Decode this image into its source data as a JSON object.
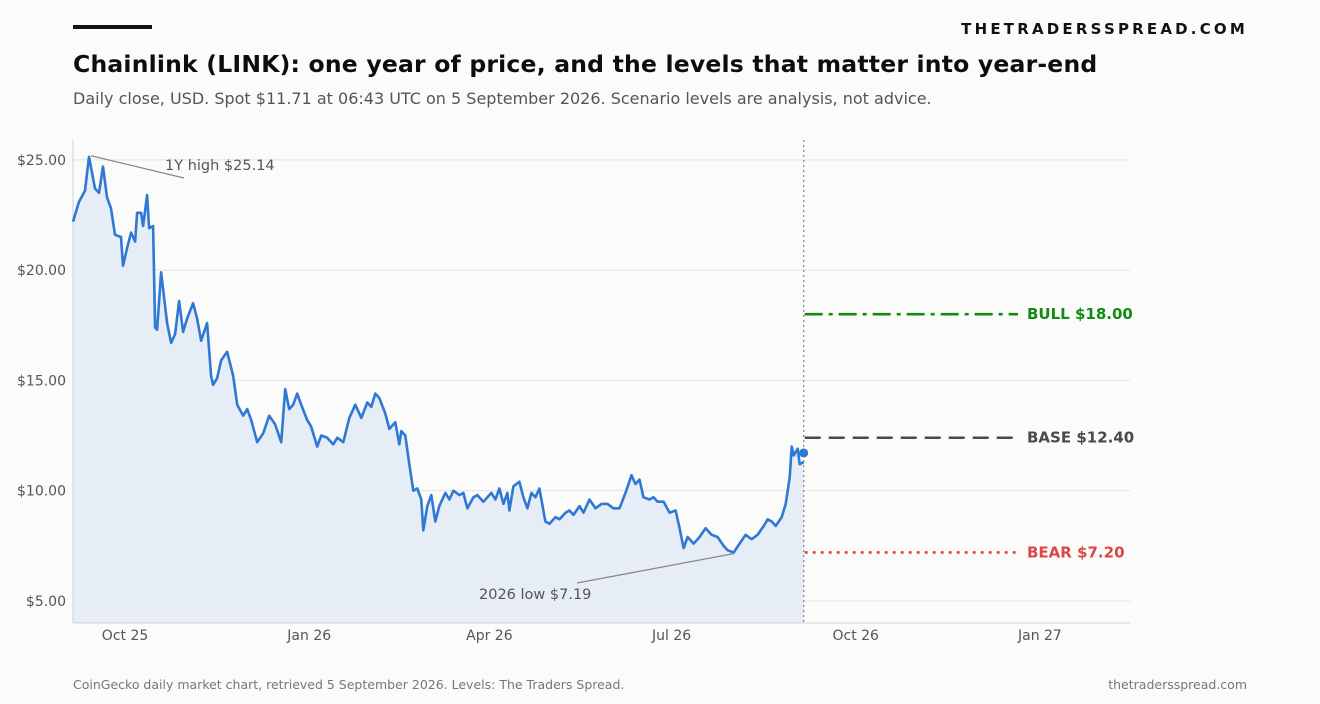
{
  "header": {
    "brand": "THETRADERSSPREAD.COM",
    "title": "Chainlink (LINK): one year of price, and the levels that matter into year-end",
    "subtitle": "Daily close, USD. Spot $11.71 at 06:43 UTC on 5 September 2026. Scenario levels are analysis, not advice."
  },
  "footer": {
    "source": "CoinGecko daily market chart, retrieved 5 September 2026. Levels: The Traders Spread.",
    "site": "thetradersspread.com"
  },
  "colors": {
    "line": "#2f78d3",
    "area": "#e6edf7",
    "bull": "#138a13",
    "base": "#4a4a4a",
    "bear": "#d94747",
    "grid": "#e3e3e3",
    "now_line": "#8a8a8a"
  },
  "chart_data": {
    "type": "line",
    "title": "Chainlink (LINK): one year of price, and the levels that matter into year-end",
    "ylabel": "",
    "xlabel": "",
    "ylim": [
      4.0,
      25.9
    ],
    "xlim": [
      "2025-09-05",
      "2027-02-15"
    ],
    "yticks": [
      5,
      10,
      15,
      20,
      25
    ],
    "ytick_labels": [
      "$5.00",
      "$10.00",
      "$15.00",
      "$20.00",
      "$25.00"
    ],
    "xticks": [
      "2025-10-01",
      "2026-01-01",
      "2026-04-01",
      "2026-07-01",
      "2026-10-01",
      "2027-01-01"
    ],
    "xtick_labels": [
      "Oct 25",
      "Jan 26",
      "Apr 26",
      "Jul 26",
      "Oct 26",
      "Jan 27"
    ],
    "grid": "horizontal",
    "spot": {
      "date": "2026-09-05",
      "value": 11.71
    },
    "series": [
      {
        "points": [
          [
            "2025-09-05",
            22.2
          ],
          [
            "2025-09-08",
            23.1
          ],
          [
            "2025-09-11",
            23.6
          ],
          [
            "2025-09-13",
            25.14
          ],
          [
            "2025-09-16",
            23.7
          ],
          [
            "2025-09-18",
            23.5
          ],
          [
            "2025-09-20",
            24.7
          ],
          [
            "2025-09-22",
            23.3
          ],
          [
            "2025-09-24",
            22.8
          ],
          [
            "2025-09-26",
            21.6
          ],
          [
            "2025-09-29",
            21.5
          ],
          [
            "2025-09-30",
            20.2
          ],
          [
            "2025-10-02",
            21.0
          ],
          [
            "2025-10-04",
            21.7
          ],
          [
            "2025-10-06",
            21.3
          ],
          [
            "2025-10-07",
            22.6
          ],
          [
            "2025-10-09",
            22.6
          ],
          [
            "2025-10-10",
            22.0
          ],
          [
            "2025-10-12",
            23.4
          ],
          [
            "2025-10-13",
            21.9
          ],
          [
            "2025-10-15",
            22.0
          ],
          [
            "2025-10-16",
            17.4
          ],
          [
            "2025-10-17",
            17.3
          ],
          [
            "2025-10-19",
            19.9
          ],
          [
            "2025-10-22",
            17.6
          ],
          [
            "2025-10-24",
            16.7
          ],
          [
            "2025-10-26",
            17.1
          ],
          [
            "2025-10-28",
            18.6
          ],
          [
            "2025-10-30",
            17.2
          ],
          [
            "2025-11-01",
            17.8
          ],
          [
            "2025-11-04",
            18.5
          ],
          [
            "2025-11-06",
            17.8
          ],
          [
            "2025-11-08",
            16.8
          ],
          [
            "2025-11-11",
            17.6
          ],
          [
            "2025-11-13",
            15.2
          ],
          [
            "2025-11-14",
            14.8
          ],
          [
            "2025-11-16",
            15.1
          ],
          [
            "2025-11-18",
            15.9
          ],
          [
            "2025-11-21",
            16.3
          ],
          [
            "2025-11-24",
            15.2
          ],
          [
            "2025-11-26",
            13.9
          ],
          [
            "2025-11-29",
            13.4
          ],
          [
            "2025-12-01",
            13.7
          ],
          [
            "2025-12-03",
            13.2
          ],
          [
            "2025-12-06",
            12.2
          ],
          [
            "2025-12-09",
            12.6
          ],
          [
            "2025-12-12",
            13.4
          ],
          [
            "2025-12-15",
            13.0
          ],
          [
            "2025-12-18",
            12.2
          ],
          [
            "2025-12-20",
            14.6
          ],
          [
            "2025-12-22",
            13.7
          ],
          [
            "2025-12-24",
            13.9
          ],
          [
            "2025-12-26",
            14.4
          ],
          [
            "2025-12-28",
            13.9
          ],
          [
            "2025-12-31",
            13.2
          ],
          [
            "2026-01-02",
            12.9
          ],
          [
            "2026-01-05",
            12.0
          ],
          [
            "2026-01-07",
            12.5
          ],
          [
            "2026-01-10",
            12.4
          ],
          [
            "2026-01-13",
            12.1
          ],
          [
            "2026-01-15",
            12.4
          ],
          [
            "2026-01-18",
            12.2
          ],
          [
            "2026-01-21",
            13.3
          ],
          [
            "2026-01-24",
            13.9
          ],
          [
            "2026-01-27",
            13.3
          ],
          [
            "2026-01-30",
            14.0
          ],
          [
            "2026-02-01",
            13.8
          ],
          [
            "2026-02-03",
            14.4
          ],
          [
            "2026-02-05",
            14.2
          ],
          [
            "2026-02-08",
            13.5
          ],
          [
            "2026-02-10",
            12.8
          ],
          [
            "2026-02-13",
            13.1
          ],
          [
            "2026-02-15",
            12.1
          ],
          [
            "2026-02-16",
            12.7
          ],
          [
            "2026-02-18",
            12.5
          ],
          [
            "2026-02-20",
            11.2
          ],
          [
            "2026-02-22",
            10.0
          ],
          [
            "2026-02-24",
            10.1
          ],
          [
            "2026-02-26",
            9.6
          ],
          [
            "2026-02-27",
            8.2
          ],
          [
            "2026-03-01",
            9.3
          ],
          [
            "2026-03-03",
            9.8
          ],
          [
            "2026-03-05",
            8.6
          ],
          [
            "2026-03-07",
            9.3
          ],
          [
            "2026-03-10",
            9.9
          ],
          [
            "2026-03-12",
            9.6
          ],
          [
            "2026-03-14",
            10.0
          ],
          [
            "2026-03-17",
            9.8
          ],
          [
            "2026-03-19",
            9.9
          ],
          [
            "2026-03-21",
            9.2
          ],
          [
            "2026-03-24",
            9.7
          ],
          [
            "2026-03-26",
            9.8
          ],
          [
            "2026-03-29",
            9.5
          ],
          [
            "2026-03-31",
            9.7
          ],
          [
            "2026-04-02",
            9.9
          ],
          [
            "2026-04-04",
            9.6
          ],
          [
            "2026-04-06",
            10.1
          ],
          [
            "2026-04-08",
            9.4
          ],
          [
            "2026-04-10",
            9.9
          ],
          [
            "2026-04-11",
            9.1
          ],
          [
            "2026-04-13",
            10.2
          ],
          [
            "2026-04-16",
            10.4
          ],
          [
            "2026-04-18",
            9.7
          ],
          [
            "2026-04-20",
            9.2
          ],
          [
            "2026-04-22",
            9.9
          ],
          [
            "2026-04-24",
            9.7
          ],
          [
            "2026-04-26",
            10.1
          ],
          [
            "2026-04-29",
            8.6
          ],
          [
            "2026-05-01",
            8.5
          ],
          [
            "2026-05-04",
            8.8
          ],
          [
            "2026-05-06",
            8.7
          ],
          [
            "2026-05-09",
            9.0
          ],
          [
            "2026-05-11",
            9.1
          ],
          [
            "2026-05-13",
            8.9
          ],
          [
            "2026-05-16",
            9.3
          ],
          [
            "2026-05-18",
            9.0
          ],
          [
            "2026-05-21",
            9.6
          ],
          [
            "2026-05-24",
            9.2
          ],
          [
            "2026-05-27",
            9.4
          ],
          [
            "2026-05-30",
            9.4
          ],
          [
            "2026-06-02",
            9.2
          ],
          [
            "2026-06-05",
            9.2
          ],
          [
            "2026-06-08",
            9.9
          ],
          [
            "2026-06-11",
            10.7
          ],
          [
            "2026-06-13",
            10.3
          ],
          [
            "2026-06-15",
            10.5
          ],
          [
            "2026-06-17",
            9.7
          ],
          [
            "2026-06-20",
            9.6
          ],
          [
            "2026-06-22",
            9.7
          ],
          [
            "2026-06-24",
            9.5
          ],
          [
            "2026-06-27",
            9.5
          ],
          [
            "2026-06-30",
            9.0
          ],
          [
            "2026-07-03",
            9.1
          ],
          [
            "2026-07-05",
            8.3
          ],
          [
            "2026-07-07",
            7.4
          ],
          [
            "2026-07-09",
            7.9
          ],
          [
            "2026-07-12",
            7.6
          ],
          [
            "2026-07-15",
            7.9
          ],
          [
            "2026-07-18",
            8.3
          ],
          [
            "2026-07-21",
            8.0
          ],
          [
            "2026-07-24",
            7.9
          ],
          [
            "2026-07-27",
            7.5
          ],
          [
            "2026-07-29",
            7.3
          ],
          [
            "2026-08-01",
            7.19
          ],
          [
            "2026-08-04",
            7.6
          ],
          [
            "2026-08-07",
            8.0
          ],
          [
            "2026-08-10",
            7.8
          ],
          [
            "2026-08-13",
            8.0
          ],
          [
            "2026-08-16",
            8.4
          ],
          [
            "2026-08-18",
            8.7
          ],
          [
            "2026-08-20",
            8.6
          ],
          [
            "2026-08-22",
            8.4
          ],
          [
            "2026-08-25",
            8.8
          ],
          [
            "2026-08-27",
            9.4
          ],
          [
            "2026-08-29",
            10.6
          ],
          [
            "2026-08-30",
            12.0
          ],
          [
            "2026-08-31",
            11.6
          ],
          [
            "2026-09-02",
            11.9
          ],
          [
            "2026-09-03",
            11.2
          ],
          [
            "2026-09-05",
            11.3
          ]
        ]
      }
    ],
    "annotations": [
      {
        "text": "1Y high $25.14",
        "date": "2025-09-13",
        "value": 25.14
      },
      {
        "text": "2026 low $7.19",
        "date": "2026-08-01",
        "value": 7.19
      }
    ],
    "scenarios": [
      {
        "name": "BULL",
        "label": "$18.00",
        "value": 18.0,
        "style": "dashdot"
      },
      {
        "name": "BASE",
        "label": "$12.40",
        "value": 12.4,
        "style": "dashed"
      },
      {
        "name": "BEAR",
        "label": "$7.20",
        "value": 7.2,
        "style": "dotted"
      }
    ]
  }
}
